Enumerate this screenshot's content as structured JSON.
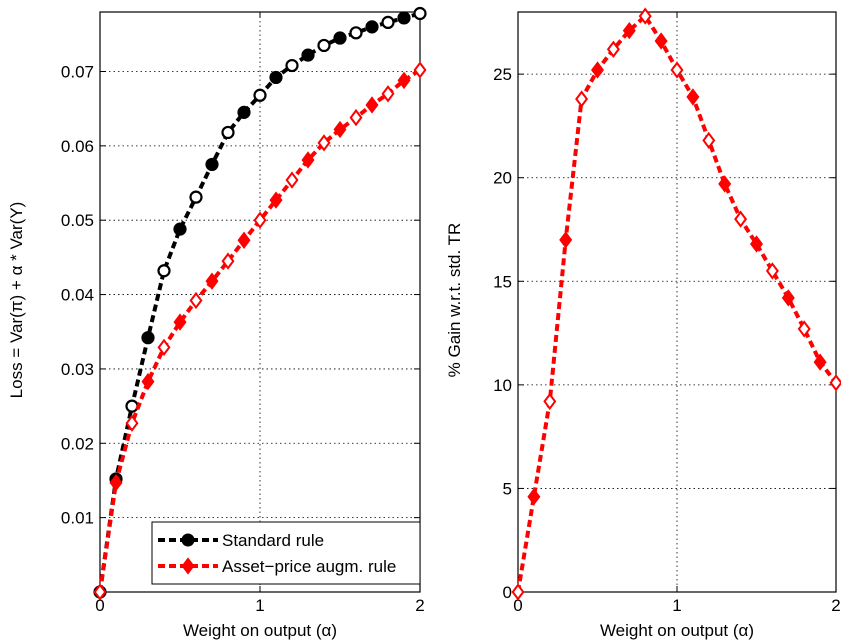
{
  "chart_data": [
    {
      "type": "line",
      "xlabel": "Weight on output (α)",
      "ylabel": "Loss = Var(π) + α * Var(Y)",
      "xlim": [
        0,
        2
      ],
      "ylim": [
        0,
        0.078
      ],
      "xticks": [
        0,
        1,
        2
      ],
      "xtick_labels": [
        "0",
        "1",
        "2"
      ],
      "yticks": [
        0.01,
        0.02,
        0.03,
        0.04,
        0.05,
        0.06,
        0.07
      ],
      "ytick_labels": [
        "0.01",
        "0.02",
        "0.03",
        "0.04",
        "0.05",
        "0.06",
        "0.07"
      ],
      "grid": true,
      "legend_position": "bottom-right",
      "x": [
        0,
        0.1,
        0.2,
        0.3,
        0.4,
        0.5,
        0.6,
        0.7,
        0.8,
        0.9,
        1.0,
        1.1,
        1.2,
        1.3,
        1.4,
        1.5,
        1.6,
        1.7,
        1.8,
        1.9,
        2.0
      ],
      "series": [
        {
          "name": "Standard rule",
          "color": "#000000",
          "marker": "circle",
          "values": [
            0.0,
            0.0152,
            0.025,
            0.0342,
            0.0432,
            0.0488,
            0.0531,
            0.0575,
            0.0618,
            0.0645,
            0.0668,
            0.0692,
            0.0708,
            0.0722,
            0.0735,
            0.0745,
            0.0752,
            0.076,
            0.0766,
            0.0772,
            0.0778
          ]
        },
        {
          "name": "Asset−price augm. rule",
          "color": "#ff0000",
          "marker": "diamond",
          "values": [
            0.0,
            0.0147,
            0.0227,
            0.0283,
            0.0329,
            0.0363,
            0.0392,
            0.0418,
            0.0445,
            0.0473,
            0.05,
            0.0527,
            0.0554,
            0.0581,
            0.0604,
            0.0622,
            0.0638,
            0.0655,
            0.067,
            0.0688,
            0.0702
          ]
        }
      ]
    },
    {
      "type": "line",
      "xlabel": "Weight on output (α)",
      "ylabel": "% Gain w.r.t. std. TR",
      "xlim": [
        0,
        2
      ],
      "ylim": [
        0,
        28
      ],
      "xticks": [
        0,
        1,
        2
      ],
      "xtick_labels": [
        "0",
        "1",
        "2"
      ],
      "yticks": [
        0,
        5,
        10,
        15,
        20,
        25
      ],
      "ytick_labels": [
        "0",
        "5",
        "10",
        "15",
        "20",
        "25"
      ],
      "grid": true,
      "x": [
        0,
        0.1,
        0.2,
        0.3,
        0.4,
        0.5,
        0.6,
        0.7,
        0.8,
        0.9,
        1.0,
        1.1,
        1.2,
        1.3,
        1.4,
        1.5,
        1.6,
        1.7,
        1.8,
        1.9,
        2.0
      ],
      "series": [
        {
          "color": "#ff0000",
          "marker": "diamond",
          "values": [
            0.0,
            4.6,
            9.2,
            17.0,
            23.8,
            25.2,
            26.2,
            27.1,
            27.8,
            26.6,
            25.2,
            23.9,
            21.8,
            19.7,
            18.0,
            16.8,
            15.5,
            14.2,
            12.7,
            11.1,
            10.1
          ]
        }
      ]
    }
  ]
}
